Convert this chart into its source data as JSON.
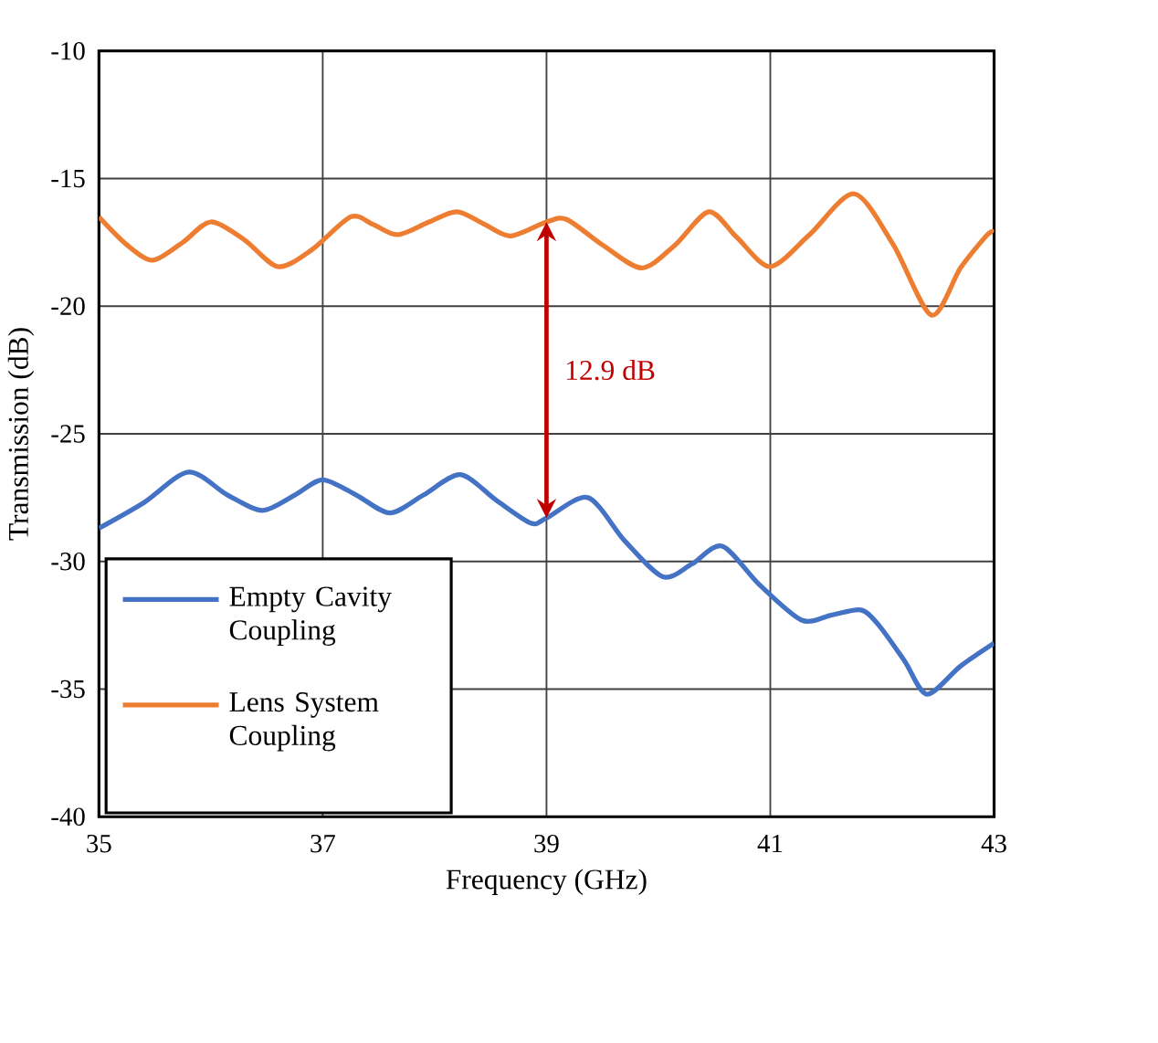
{
  "chart_data": {
    "type": "line",
    "xlabel": "Frequency (GHz)",
    "ylabel": "Transmission (dB)",
    "xlim": [
      35,
      43
    ],
    "ylim": [
      -40,
      -10
    ],
    "xticks": [
      35,
      37,
      39,
      41,
      43
    ],
    "yticks": [
      -40,
      -35,
      -30,
      -25,
      -20,
      -15,
      -10
    ],
    "grid": true,
    "legend": "bottom left",
    "marker": "none",
    "line_style": "solid",
    "series": [
      {
        "name": "Empty Cavity Coupling",
        "color": "#4472c4",
        "x": [
          35,
          35.4,
          35.8,
          36.15,
          36.46,
          36.75,
          37.0,
          37.3,
          37.6,
          37.9,
          38.23,
          38.55,
          38.86,
          39.0,
          39.37,
          39.7,
          40.04,
          40.3,
          40.57,
          40.9,
          41.28,
          41.55,
          41.81,
          41.97,
          42.2,
          42.4,
          42.7,
          43
        ],
        "values": [
          -28.7,
          -27.7,
          -26.5,
          -27.4,
          -28.0,
          -27.4,
          -26.8,
          -27.4,
          -28.1,
          -27.4,
          -26.6,
          -27.6,
          -28.5,
          -28.3,
          -27.5,
          -29.2,
          -30.6,
          -30.1,
          -29.4,
          -30.9,
          -32.3,
          -32.1,
          -31.9,
          -32.5,
          -33.9,
          -35.2,
          -34.1,
          -33.2
        ]
      },
      {
        "name": "Lens System Coupling",
        "color": "#ed7d31",
        "x": [
          35,
          35.25,
          35.48,
          35.75,
          36.0,
          36.3,
          36.6,
          36.9,
          37.25,
          37.45,
          37.67,
          37.95,
          38.2,
          38.45,
          38.68,
          39.0,
          39.18,
          39.5,
          39.85,
          40.15,
          40.45,
          40.7,
          41.0,
          41.35,
          41.75,
          42.1,
          42.44,
          42.7,
          42.94,
          43
        ],
        "values": [
          -16.5,
          -17.6,
          -18.2,
          -17.5,
          -16.7,
          -17.4,
          -18.45,
          -17.8,
          -16.5,
          -16.8,
          -17.2,
          -16.7,
          -16.3,
          -16.8,
          -17.25,
          -16.7,
          -16.6,
          -17.6,
          -18.5,
          -17.6,
          -16.3,
          -17.3,
          -18.45,
          -17.2,
          -15.6,
          -17.6,
          -20.35,
          -18.5,
          -17.2,
          -17.1
        ]
      }
    ],
    "ref_lines": [
      {
        "axis": "x",
        "value": 39,
        "color": "#c00000",
        "label": "12.9 dB"
      }
    ]
  }
}
